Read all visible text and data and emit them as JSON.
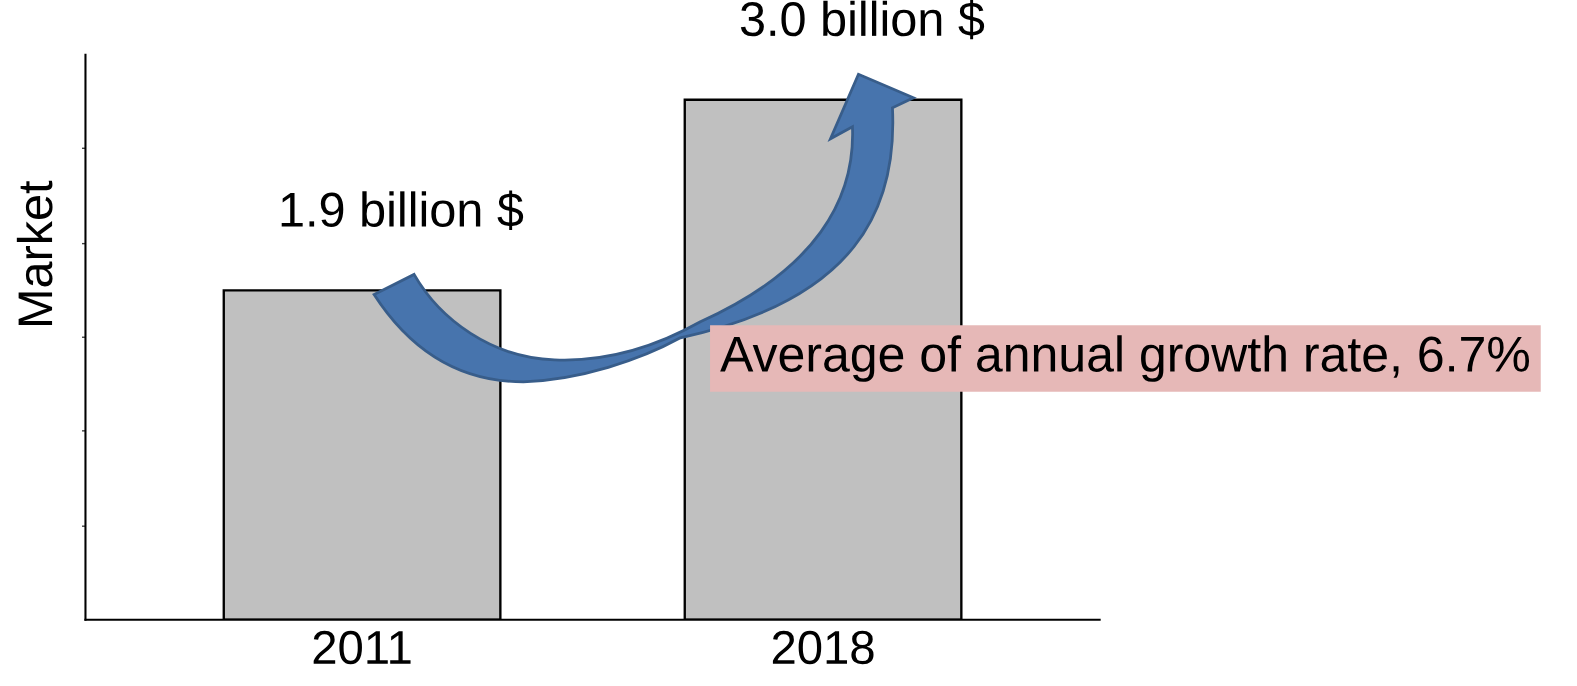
{
  "chart_data": {
    "type": "bar",
    "ylabel": "Market",
    "categories": [
      "2011",
      "2018"
    ],
    "values": [
      1.9,
      3.0
    ],
    "color": "#c0c0c0",
    "value_labels": [
      "1.9 billion $",
      "3.0 billion $"
    ],
    "ylim": [
      0,
      3.26
    ],
    "yticks": [
      {
        "value": 0.54,
        "label": null
      },
      {
        "value": 1.09,
        "label": null
      },
      {
        "value": 1.63,
        "label": null
      },
      {
        "value": 2.17,
        "label": null
      },
      {
        "value": 2.72,
        "label": null
      }
    ],
    "tick_labels": "x",
    "annotations": [
      "Average of annual growth rate, 6.7%"
    ]
  }
}
